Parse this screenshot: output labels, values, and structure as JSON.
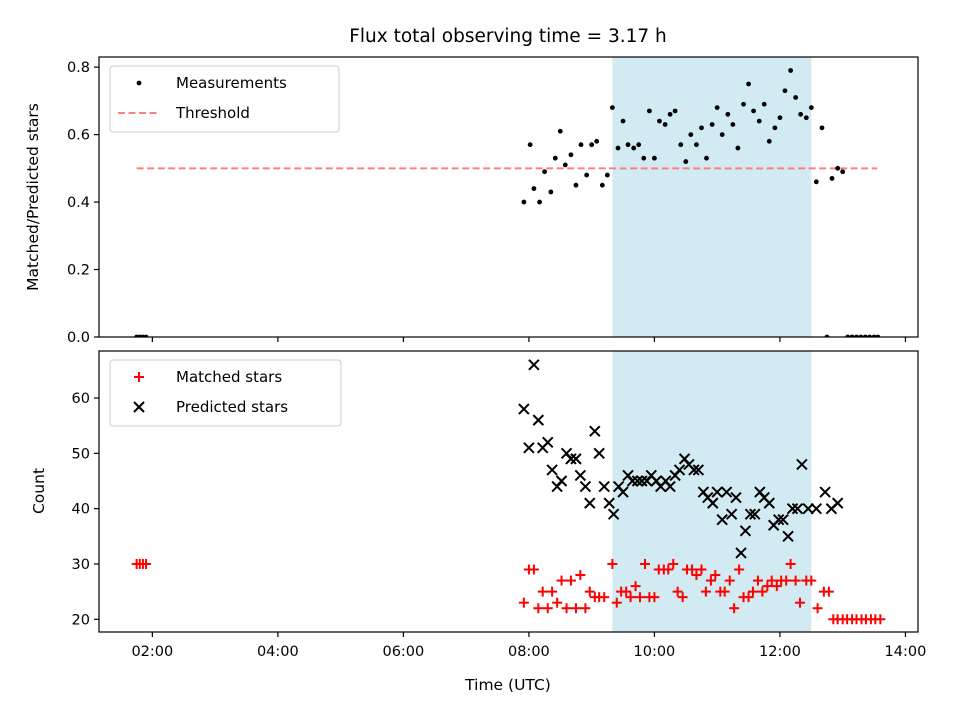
{
  "chart_data": [
    {
      "type": "scatter",
      "title": "Flux total observing time = 3.17 h",
      "ylabel": "Matched/Predicted stars",
      "xlabel": "",
      "xlim": [
        1.15,
        14.2
      ],
      "ylim": [
        0,
        0.83
      ],
      "x_ticks": [
        2,
        4,
        6,
        8,
        10,
        12,
        14
      ],
      "y_ticks": [
        0.0,
        0.2,
        0.4,
        0.6,
        0.8
      ],
      "y_tick_labels": [
        "0.0",
        "0.2",
        "0.4",
        "0.6",
        "0.8"
      ],
      "shaded_region": {
        "x": [
          9.33,
          12.5
        ],
        "color": "#add8e6"
      },
      "legend_position": "upper left",
      "threshold": {
        "name": "Threshold",
        "y": 0.5,
        "x": [
          1.75,
          13.55
        ],
        "color": "#ff7f7f",
        "style": "dashed"
      },
      "series": [
        {
          "name": "Measurements",
          "marker": "dot",
          "color": "#000000",
          "points": [
            [
              1.75,
              0
            ],
            [
              1.8,
              0
            ],
            [
              1.85,
              0
            ],
            [
              1.9,
              0
            ],
            [
              7.92,
              0.4
            ],
            [
              8.02,
              0.57
            ],
            [
              8.08,
              0.44
            ],
            [
              8.17,
              0.4
            ],
            [
              8.25,
              0.49
            ],
            [
              8.35,
              0.43
            ],
            [
              8.42,
              0.53
            ],
            [
              8.5,
              0.61
            ],
            [
              8.58,
              0.51
            ],
            [
              8.67,
              0.54
            ],
            [
              8.75,
              0.45
            ],
            [
              8.83,
              0.57
            ],
            [
              8.92,
              0.48
            ],
            [
              9.0,
              0.57
            ],
            [
              9.08,
              0.58
            ],
            [
              9.17,
              0.45
            ],
            [
              9.25,
              0.48
            ],
            [
              9.33,
              0.68
            ],
            [
              9.42,
              0.56
            ],
            [
              9.5,
              0.64
            ],
            [
              9.58,
              0.57
            ],
            [
              9.67,
              0.56
            ],
            [
              9.75,
              0.57
            ],
            [
              9.83,
              0.53
            ],
            [
              9.92,
              0.67
            ],
            [
              10.0,
              0.53
            ],
            [
              10.08,
              0.64
            ],
            [
              10.17,
              0.63
            ],
            [
              10.25,
              0.66
            ],
            [
              10.33,
              0.67
            ],
            [
              10.42,
              0.57
            ],
            [
              10.5,
              0.52
            ],
            [
              10.58,
              0.6
            ],
            [
              10.67,
              0.57
            ],
            [
              10.75,
              0.62
            ],
            [
              10.83,
              0.53
            ],
            [
              10.92,
              0.63
            ],
            [
              11.0,
              0.68
            ],
            [
              11.08,
              0.6
            ],
            [
              11.17,
              0.66
            ],
            [
              11.25,
              0.63
            ],
            [
              11.33,
              0.56
            ],
            [
              11.42,
              0.69
            ],
            [
              11.5,
              0.75
            ],
            [
              11.58,
              0.67
            ],
            [
              11.67,
              0.64
            ],
            [
              11.75,
              0.69
            ],
            [
              11.83,
              0.58
            ],
            [
              11.92,
              0.62
            ],
            [
              12.0,
              0.65
            ],
            [
              12.08,
              0.73
            ],
            [
              12.17,
              0.79
            ],
            [
              12.25,
              0.71
            ],
            [
              12.33,
              0.66
            ],
            [
              12.42,
              0.65
            ],
            [
              12.5,
              0.68
            ],
            [
              12.58,
              0.46
            ],
            [
              12.67,
              0.62
            ],
            [
              12.75,
              0
            ],
            [
              12.83,
              0.47
            ],
            [
              12.92,
              0.5
            ],
            [
              13.0,
              0.49
            ],
            [
              13.08,
              0
            ],
            [
              13.15,
              0
            ],
            [
              13.22,
              0
            ],
            [
              13.29,
              0
            ],
            [
              13.36,
              0
            ],
            [
              13.43,
              0
            ],
            [
              13.5,
              0
            ],
            [
              13.56,
              0
            ]
          ]
        }
      ]
    },
    {
      "type": "scatter",
      "title": "",
      "ylabel": "Count",
      "xlabel": "Time (UTC)",
      "xlim": [
        1.15,
        14.2
      ],
      "ylim": [
        17.7,
        68.5
      ],
      "x_ticks": [
        2,
        4,
        6,
        8,
        10,
        12,
        14
      ],
      "x_tick_labels": [
        "02:00",
        "04:00",
        "06:00",
        "08:00",
        "10:00",
        "12:00",
        "14:00"
      ],
      "y_ticks": [
        20,
        30,
        40,
        50,
        60
      ],
      "y_tick_labels": [
        "20",
        "30",
        "40",
        "50",
        "60"
      ],
      "shaded_region": {
        "x": [
          9.33,
          12.5
        ],
        "color": "#add8e6"
      },
      "legend_position": "upper left",
      "series": [
        {
          "name": "Matched stars",
          "marker": "plus",
          "color": "#ff0000",
          "points": [
            [
              1.75,
              30
            ],
            [
              1.8,
              30
            ],
            [
              1.85,
              30
            ],
            [
              1.9,
              30
            ],
            [
              7.92,
              23
            ],
            [
              8.0,
              29
            ],
            [
              8.08,
              29
            ],
            [
              8.15,
              22
            ],
            [
              8.22,
              25
            ],
            [
              8.3,
              22
            ],
            [
              8.37,
              25
            ],
            [
              8.45,
              23
            ],
            [
              8.52,
              27
            ],
            [
              8.6,
              22
            ],
            [
              8.67,
              27
            ],
            [
              8.75,
              22
            ],
            [
              8.82,
              28
            ],
            [
              8.9,
              22
            ],
            [
              8.97,
              25
            ],
            [
              9.05,
              24
            ],
            [
              9.12,
              24
            ],
            [
              9.2,
              24
            ],
            [
              9.33,
              30
            ],
            [
              9.4,
              23
            ],
            [
              9.47,
              25
            ],
            [
              9.55,
              25
            ],
            [
              9.62,
              24
            ],
            [
              9.7,
              26
            ],
            [
              9.77,
              24
            ],
            [
              9.85,
              30
            ],
            [
              9.92,
              24
            ],
            [
              10.0,
              24
            ],
            [
              10.07,
              29
            ],
            [
              10.15,
              29
            ],
            [
              10.22,
              29
            ],
            [
              10.3,
              30
            ],
            [
              10.37,
              25
            ],
            [
              10.45,
              24
            ],
            [
              10.52,
              29
            ],
            [
              10.6,
              29
            ],
            [
              10.67,
              28
            ],
            [
              10.75,
              29
            ],
            [
              10.82,
              25
            ],
            [
              10.9,
              27
            ],
            [
              10.97,
              28
            ],
            [
              11.05,
              25
            ],
            [
              11.12,
              25
            ],
            [
              11.2,
              27
            ],
            [
              11.27,
              22
            ],
            [
              11.35,
              29
            ],
            [
              11.42,
              24
            ],
            [
              11.5,
              24
            ],
            [
              11.57,
              25
            ],
            [
              11.65,
              27
            ],
            [
              11.72,
              25
            ],
            [
              11.8,
              26
            ],
            [
              11.87,
              27
            ],
            [
              11.95,
              26
            ],
            [
              12.02,
              27
            ],
            [
              12.1,
              27
            ],
            [
              12.17,
              30
            ],
            [
              12.25,
              27
            ],
            [
              12.32,
              23
            ],
            [
              12.42,
              27
            ],
            [
              12.5,
              27
            ],
            [
              12.6,
              22
            ],
            [
              12.7,
              25
            ],
            [
              12.78,
              25
            ],
            [
              12.85,
              20
            ],
            [
              12.92,
              20
            ],
            [
              13.0,
              20
            ],
            [
              13.07,
              20
            ],
            [
              13.15,
              20
            ],
            [
              13.22,
              20
            ],
            [
              13.3,
              20
            ],
            [
              13.37,
              20
            ],
            [
              13.45,
              20
            ],
            [
              13.52,
              20
            ],
            [
              13.6,
              20
            ]
          ]
        },
        {
          "name": "Predicted stars",
          "marker": "x",
          "color": "#000000",
          "points": [
            [
              7.92,
              58
            ],
            [
              8.0,
              51
            ],
            [
              8.08,
              66
            ],
            [
              8.15,
              56
            ],
            [
              8.22,
              51
            ],
            [
              8.3,
              52
            ],
            [
              8.37,
              47
            ],
            [
              8.45,
              44
            ],
            [
              8.52,
              45
            ],
            [
              8.6,
              50
            ],
            [
              8.67,
              49
            ],
            [
              8.75,
              49
            ],
            [
              8.82,
              46
            ],
            [
              8.9,
              44
            ],
            [
              8.97,
              41
            ],
            [
              9.05,
              54
            ],
            [
              9.12,
              50
            ],
            [
              9.2,
              44
            ],
            [
              9.28,
              41
            ],
            [
              9.35,
              39
            ],
            [
              9.43,
              44
            ],
            [
              9.5,
              43
            ],
            [
              9.58,
              46
            ],
            [
              9.65,
              45
            ],
            [
              9.73,
              45
            ],
            [
              9.8,
              45
            ],
            [
              9.88,
              45
            ],
            [
              9.95,
              46
            ],
            [
              10.03,
              45
            ],
            [
              10.1,
              44
            ],
            [
              10.18,
              45
            ],
            [
              10.25,
              44
            ],
            [
              10.33,
              46
            ],
            [
              10.4,
              47
            ],
            [
              10.48,
              49
            ],
            [
              10.55,
              48
            ],
            [
              10.63,
              47
            ],
            [
              10.7,
              47
            ],
            [
              10.78,
              43
            ],
            [
              10.85,
              42
            ],
            [
              10.93,
              41
            ],
            [
              11.0,
              43
            ],
            [
              11.08,
              38
            ],
            [
              11.15,
              43
            ],
            [
              11.23,
              39
            ],
            [
              11.3,
              42
            ],
            [
              11.38,
              32
            ],
            [
              11.45,
              36
            ],
            [
              11.53,
              39
            ],
            [
              11.6,
              39
            ],
            [
              11.68,
              43
            ],
            [
              11.75,
              42
            ],
            [
              11.83,
              41
            ],
            [
              11.9,
              37
            ],
            [
              11.98,
              38
            ],
            [
              12.05,
              38
            ],
            [
              12.13,
              35
            ],
            [
              12.2,
              40
            ],
            [
              12.28,
              40
            ],
            [
              12.35,
              48
            ],
            [
              12.45,
              40
            ],
            [
              12.58,
              40
            ],
            [
              12.72,
              43
            ],
            [
              12.82,
              40
            ],
            [
              12.92,
              41
            ]
          ]
        }
      ]
    }
  ]
}
